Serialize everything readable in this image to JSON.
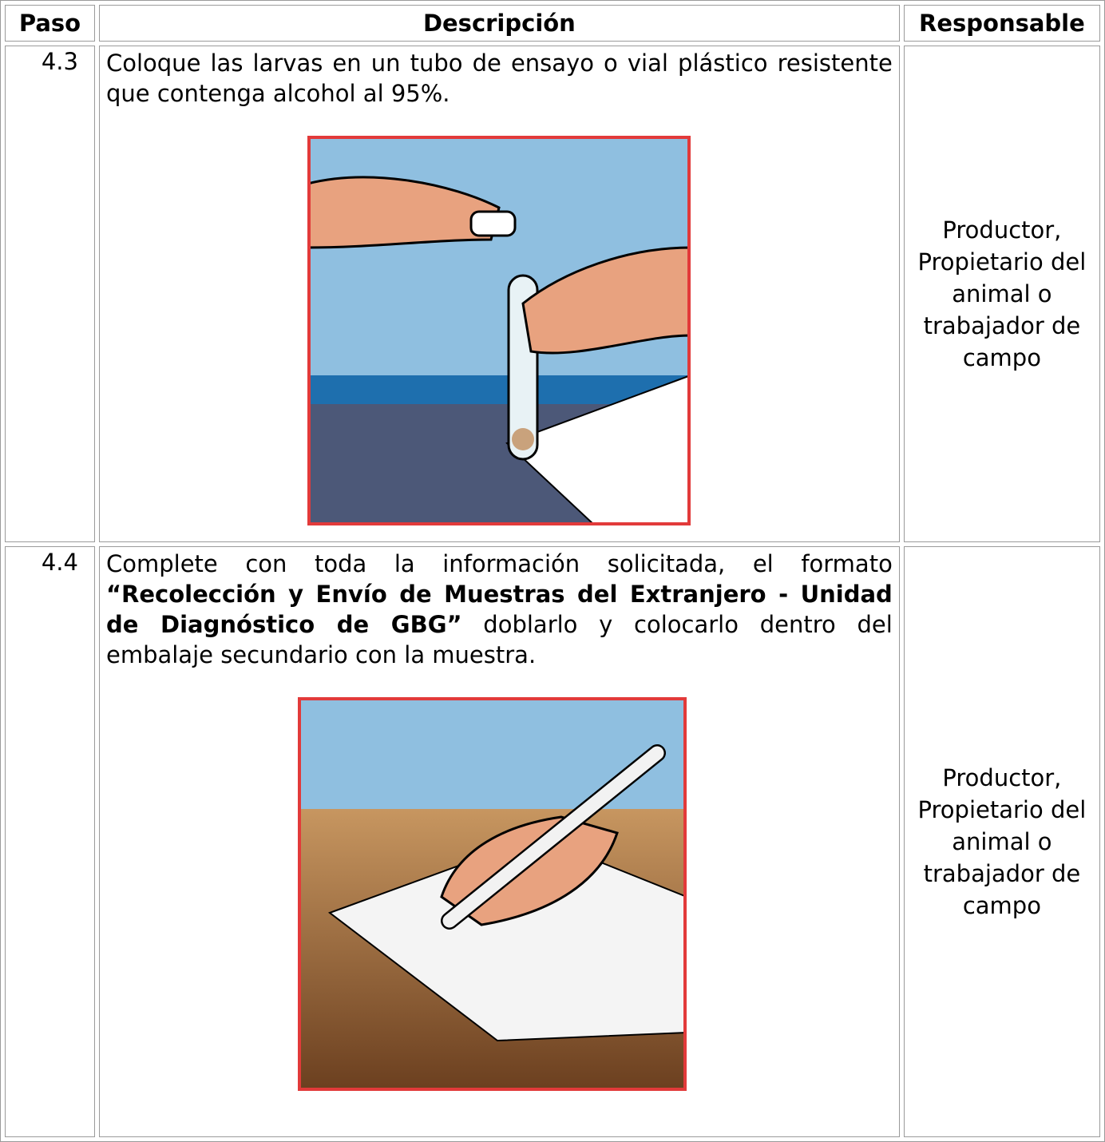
{
  "table": {
    "header": [
      "Paso",
      "Descripción",
      "Responsable"
    ],
    "rows": [
      {
        "step": "4.3",
        "description": [
          "Coloque las larvas en un tubo de ensayo o vial plástico resistente que contenga alcohol al 95%."
        ],
        "responsible": "Productor, Propietario del animal o trabajador de campo"
      },
      {
        "step": "4.4",
        "description": [
          "Complete con toda la información solicitada, el formato ",
          "“Recolección y Envío de Muestras del Extranjero - Unidad de Diagnóstico de GBG”",
          " doblarlo y colocarlo dentro del embalaje secundario con la muestra."
        ],
        "responsible": "Productor, Propietario del animal o trabajador de campo"
      }
    ]
  }
}
